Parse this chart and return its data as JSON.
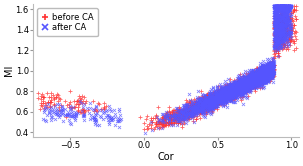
{
  "title": "",
  "xlabel": "Cor",
  "ylabel": "MI",
  "xlim": [
    -0.75,
    1.05
  ],
  "ylim": [
    0.35,
    1.65
  ],
  "xticks": [
    -0.5,
    0.0,
    0.5,
    1.0
  ],
  "yticks": [
    0.4,
    0.6,
    0.8,
    1.0,
    1.2,
    1.4,
    1.6
  ],
  "before_color": "#FF3333",
  "after_color": "#5555FF",
  "bg_color": "#FFFFFF",
  "panel_bg": "#FFFFFF",
  "legend_labels": [
    "before CA",
    "after CA"
  ],
  "n_before": 2500,
  "n_after": 4000,
  "seed": 7
}
